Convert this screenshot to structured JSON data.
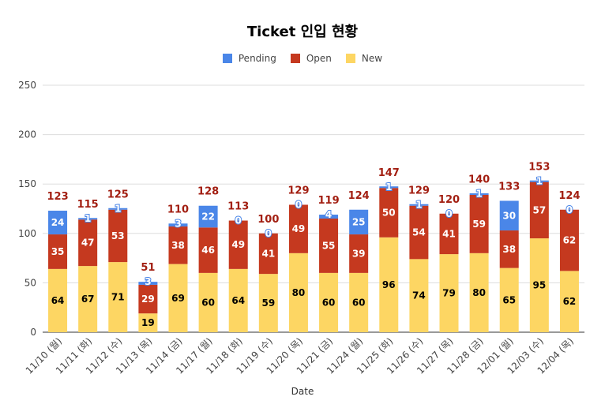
{
  "chart_data": {
    "type": "bar",
    "stacked": true,
    "title": "Ticket 인입 현황",
    "xlabel": "Date",
    "ylabel": "",
    "ylim": [
      0,
      250
    ],
    "yticks": [
      0,
      50,
      100,
      150,
      200,
      250
    ],
    "grid": true,
    "legend_position": "top",
    "categories": [
      "11/10 (월)",
      "11/11 (화)",
      "11/12 (수)",
      "11/13 (목)",
      "11/14 (금)",
      "11/17 (월)",
      "11/18 (화)",
      "11/19 (수)",
      "11/20 (목)",
      "11/21 (금)",
      "11/24 (월)",
      "11/25 (화)",
      "11/26 (수)",
      "11/27 (목)",
      "11/28 (금)",
      "12/01 (월)",
      "12/03 (수)",
      "12/04 (목)"
    ],
    "series": [
      {
        "name": "New",
        "color": "#fdd663",
        "values": [
          64,
          67,
          71,
          19,
          69,
          60,
          64,
          59,
          80,
          60,
          60,
          96,
          74,
          79,
          80,
          65,
          95,
          62
        ]
      },
      {
        "name": "Open",
        "color": "#c5391f",
        "values": [
          35,
          47,
          53,
          29,
          38,
          46,
          49,
          41,
          49,
          55,
          39,
          50,
          54,
          41,
          59,
          38,
          57,
          62
        ]
      },
      {
        "name": "Pending",
        "color": "#4a86e8",
        "values": [
          24,
          1,
          1,
          3,
          3,
          22,
          0,
          0,
          0,
          4,
          25,
          1,
          1,
          0,
          1,
          30,
          1,
          0
        ]
      }
    ],
    "totals": [
      123,
      115,
      125,
      51,
      110,
      128,
      113,
      100,
      129,
      119,
      124,
      147,
      129,
      120,
      140,
      133,
      153,
      124
    ],
    "legend_order": [
      "Pending",
      "Open",
      "New"
    ]
  }
}
